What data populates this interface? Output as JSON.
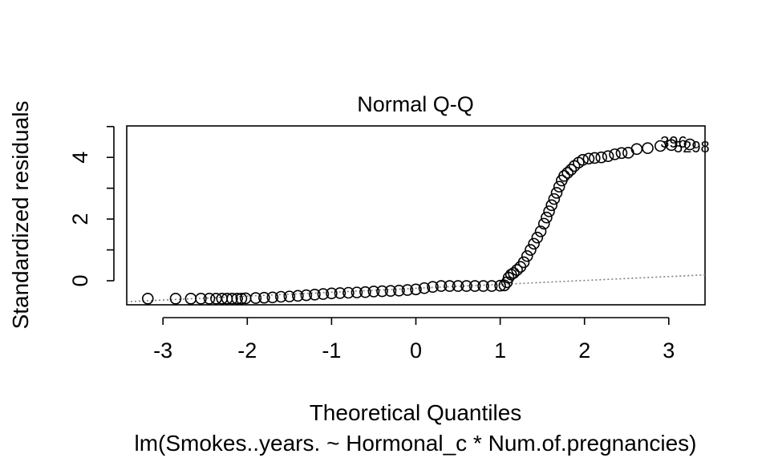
{
  "chart_data": {
    "type": "scatter",
    "title": "Normal Q-Q",
    "xlabel": "Theoretical Quantiles",
    "ylabel": "Standardized residuals",
    "subtitle": "lm(Smokes..years. ~ Hormonal_c * Num.of.pregnancies)",
    "xlim": [
      -3.43,
      3.43
    ],
    "ylim": [
      -0.78,
      5.02
    ],
    "x_ticks": [
      -3,
      -2,
      -1,
      0,
      1,
      2,
      3
    ],
    "x_tick_labels": [
      "-3",
      "-2",
      "-1",
      "0",
      "1",
      "2",
      "3"
    ],
    "y_ticks": [
      0,
      1,
      2,
      3,
      4,
      5
    ],
    "y_tick_labels": [
      "0",
      "",
      "2",
      "",
      "4",
      ""
    ],
    "grid": false,
    "reference_line": {
      "style": "dotted",
      "color": "#808080",
      "slope": 0.127,
      "intercept": -0.245
    },
    "point_color": "#000000",
    "marker": "open-circle",
    "points": [
      {
        "x": -3.18,
        "y": -0.58
      },
      {
        "x": -2.85,
        "y": -0.58
      },
      {
        "x": -2.67,
        "y": -0.58
      },
      {
        "x": -2.55,
        "y": -0.58
      },
      {
        "x": -2.45,
        "y": -0.58
      },
      {
        "x": -2.37,
        "y": -0.58
      },
      {
        "x": -2.3,
        "y": -0.58
      },
      {
        "x": -2.24,
        "y": -0.58
      },
      {
        "x": -2.18,
        "y": -0.58
      },
      {
        "x": -2.12,
        "y": -0.58
      },
      {
        "x": -2.07,
        "y": -0.58
      },
      {
        "x": -2.02,
        "y": -0.57
      },
      {
        "x": -1.9,
        "y": -0.56
      },
      {
        "x": -1.8,
        "y": -0.55
      },
      {
        "x": -1.7,
        "y": -0.54
      },
      {
        "x": -1.6,
        "y": -0.52
      },
      {
        "x": -1.5,
        "y": -0.51
      },
      {
        "x": -1.4,
        "y": -0.49
      },
      {
        "x": -1.3,
        "y": -0.47
      },
      {
        "x": -1.2,
        "y": -0.45
      },
      {
        "x": -1.1,
        "y": -0.43
      },
      {
        "x": -1.0,
        "y": -0.41
      },
      {
        "x": -0.9,
        "y": -0.4
      },
      {
        "x": -0.8,
        "y": -0.39
      },
      {
        "x": -0.7,
        "y": -0.38
      },
      {
        "x": -0.6,
        "y": -0.37
      },
      {
        "x": -0.5,
        "y": -0.35
      },
      {
        "x": -0.4,
        "y": -0.34
      },
      {
        "x": -0.3,
        "y": -0.33
      },
      {
        "x": -0.2,
        "y": -0.32
      },
      {
        "x": -0.1,
        "y": -0.3
      },
      {
        "x": 0.0,
        "y": -0.28
      },
      {
        "x": 0.1,
        "y": -0.24
      },
      {
        "x": 0.2,
        "y": -0.2
      },
      {
        "x": 0.3,
        "y": -0.17
      },
      {
        "x": 0.4,
        "y": -0.17
      },
      {
        "x": 0.5,
        "y": -0.17
      },
      {
        "x": 0.6,
        "y": -0.17
      },
      {
        "x": 0.7,
        "y": -0.17
      },
      {
        "x": 0.8,
        "y": -0.17
      },
      {
        "x": 0.9,
        "y": -0.17
      },
      {
        "x": 1.0,
        "y": -0.16
      },
      {
        "x": 1.05,
        "y": -0.15
      },
      {
        "x": 1.08,
        "y": -0.05
      },
      {
        "x": 1.1,
        "y": 0.1
      },
      {
        "x": 1.13,
        "y": 0.2
      },
      {
        "x": 1.16,
        "y": 0.25
      },
      {
        "x": 1.2,
        "y": 0.35
      },
      {
        "x": 1.24,
        "y": 0.45
      },
      {
        "x": 1.28,
        "y": 0.6
      },
      {
        "x": 1.32,
        "y": 0.8
      },
      {
        "x": 1.36,
        "y": 1.0
      },
      {
        "x": 1.4,
        "y": 1.2
      },
      {
        "x": 1.44,
        "y": 1.4
      },
      {
        "x": 1.48,
        "y": 1.6
      },
      {
        "x": 1.52,
        "y": 1.85
      },
      {
        "x": 1.55,
        "y": 2.05
      },
      {
        "x": 1.58,
        "y": 2.25
      },
      {
        "x": 1.61,
        "y": 2.45
      },
      {
        "x": 1.64,
        "y": 2.65
      },
      {
        "x": 1.67,
        "y": 2.85
      },
      {
        "x": 1.7,
        "y": 3.05
      },
      {
        "x": 1.73,
        "y": 3.25
      },
      {
        "x": 1.76,
        "y": 3.4
      },
      {
        "x": 1.8,
        "y": 3.5
      },
      {
        "x": 1.84,
        "y": 3.6
      },
      {
        "x": 1.88,
        "y": 3.72
      },
      {
        "x": 1.93,
        "y": 3.83
      },
      {
        "x": 1.98,
        "y": 3.92
      },
      {
        "x": 2.05,
        "y": 3.96
      },
      {
        "x": 2.12,
        "y": 3.98
      },
      {
        "x": 2.2,
        "y": 4.0
      },
      {
        "x": 2.28,
        "y": 4.04
      },
      {
        "x": 2.36,
        "y": 4.1
      },
      {
        "x": 2.44,
        "y": 4.14
      },
      {
        "x": 2.52,
        "y": 4.15
      },
      {
        "x": 2.62,
        "y": 4.27
      },
      {
        "x": 2.75,
        "y": 4.3
      },
      {
        "x": 2.9,
        "y": 4.37
      },
      {
        "x": 3.03,
        "y": 4.4
      },
      {
        "x": 3.25,
        "y": 4.42
      }
    ],
    "point_labels": [
      {
        "x": 2.9,
        "y": 4.5,
        "text": "396"
      },
      {
        "x": 3.06,
        "y": 4.34,
        "text": "5298"
      }
    ]
  }
}
